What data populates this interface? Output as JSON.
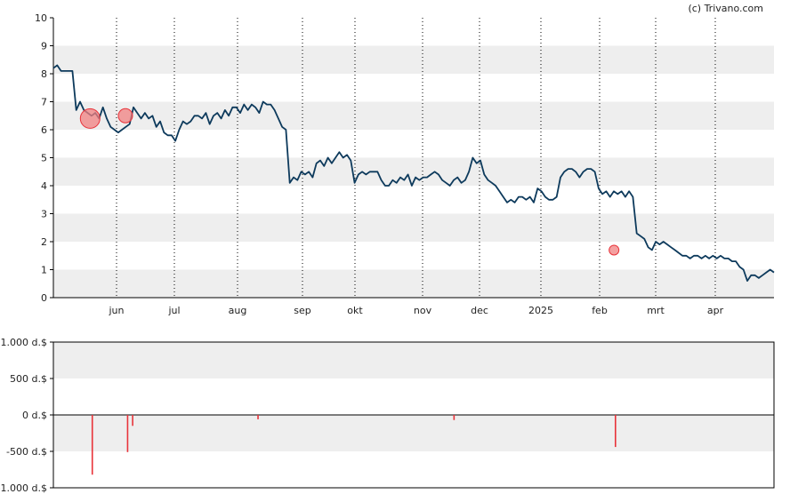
{
  "credit": "(c) Trivano.com",
  "colors": {
    "price_line": "#0d3a5c",
    "band": "#eeeeee",
    "marker": "#e8333a",
    "marker_fill": "#f08080",
    "axis": "#000000",
    "vline": "#000000"
  },
  "chart_data": [
    {
      "type": "line",
      "title": "",
      "xlabel": "",
      "ylabel": "",
      "ylim": [
        0,
        10
      ],
      "y_ticks": [
        "0",
        "1",
        "2",
        "3",
        "4",
        "5",
        "6",
        "7",
        "8",
        "9",
        "10"
      ],
      "x_ticks": [
        "jun",
        "jul",
        "aug",
        "sep",
        "okt",
        "nov",
        "dec",
        "2025",
        "feb",
        "mrt",
        "apr"
      ],
      "grid": "alternating horizontal bands, dotted vertical month lines",
      "series": [
        {
          "values": [
            8.2,
            8.3,
            8.1,
            8.1,
            8.1,
            8.1,
            6.7,
            7.0,
            6.7,
            6.6,
            6.5,
            6.6,
            6.4,
            6.8,
            6.4,
            6.1,
            6.0,
            5.9,
            6.0,
            6.1,
            6.2,
            6.8,
            6.6,
            6.4,
            6.6,
            6.4,
            6.5,
            6.1,
            6.3,
            5.9,
            5.8,
            5.8,
            5.6,
            6.0,
            6.3,
            6.2,
            6.3,
            6.5,
            6.5,
            6.4,
            6.6,
            6.2,
            6.5,
            6.6,
            6.4,
            6.7,
            6.5,
            6.8,
            6.8,
            6.6,
            6.9,
            6.7,
            6.9,
            6.8,
            6.6,
            7.0,
            6.9,
            6.9,
            6.7,
            6.4,
            6.1,
            6.0,
            4.1,
            4.3,
            4.2,
            4.5,
            4.4,
            4.5,
            4.3,
            4.8,
            4.9,
            4.7,
            5.0,
            4.8,
            5.0,
            5.2,
            5.0,
            5.1,
            4.9,
            4.1,
            4.4,
            4.5,
            4.4,
            4.5,
            4.5,
            4.5,
            4.2,
            4.0,
            4.0,
            4.2,
            4.1,
            4.3,
            4.2,
            4.4,
            4.0,
            4.3,
            4.2,
            4.3,
            4.3,
            4.4,
            4.5,
            4.4,
            4.2,
            4.1,
            4.0,
            4.2,
            4.3,
            4.1,
            4.2,
            4.5,
            5.0,
            4.8,
            4.9,
            4.4,
            4.2,
            4.1,
            4.0,
            3.8,
            3.6,
            3.4,
            3.5,
            3.4,
            3.6,
            3.6,
            3.5,
            3.6,
            3.4,
            3.9,
            3.8,
            3.6,
            3.5,
            3.5,
            3.6,
            4.3,
            4.5,
            4.6,
            4.6,
            4.5,
            4.3,
            4.5,
            4.6,
            4.6,
            4.5,
            3.9,
            3.7,
            3.8,
            3.6,
            3.8,
            3.7,
            3.8,
            3.6,
            3.8,
            3.6,
            2.3,
            2.2,
            2.1,
            1.8,
            1.7,
            2.0,
            1.9,
            2.0,
            1.9,
            1.8,
            1.7,
            1.6,
            1.5,
            1.5,
            1.4,
            1.5,
            1.5,
            1.4,
            1.5,
            1.4,
            1.5,
            1.4,
            1.5,
            1.4,
            1.4,
            1.3,
            1.3,
            1.1,
            1.0,
            0.6,
            0.8,
            0.8,
            0.7,
            0.8,
            0.9,
            1.0,
            0.9
          ]
        }
      ],
      "transaction_markers": [
        {
          "value": 6.4,
          "x_fraction": 0.051,
          "size": "large"
        },
        {
          "value": 6.5,
          "x_fraction": 0.1,
          "size": "medium"
        },
        {
          "value": 1.7,
          "x_fraction": 0.778,
          "size": "small"
        }
      ]
    },
    {
      "type": "bar",
      "title": "",
      "xlabel": "",
      "ylabel": "",
      "ylim": [
        -1000,
        1000
      ],
      "y_ticks": [
        "1.000 d.$",
        "500 d.$",
        "0 d.$",
        "-500 d.$",
        "-1.000 d.$"
      ],
      "bars": [
        {
          "x_fraction": 0.054,
          "value": -820
        },
        {
          "x_fraction": 0.103,
          "value": -510
        },
        {
          "x_fraction": 0.11,
          "value": -150
        },
        {
          "x_fraction": 0.284,
          "value": -60
        },
        {
          "x_fraction": 0.556,
          "value": -70
        },
        {
          "x_fraction": 0.78,
          "value": -440
        }
      ]
    }
  ]
}
